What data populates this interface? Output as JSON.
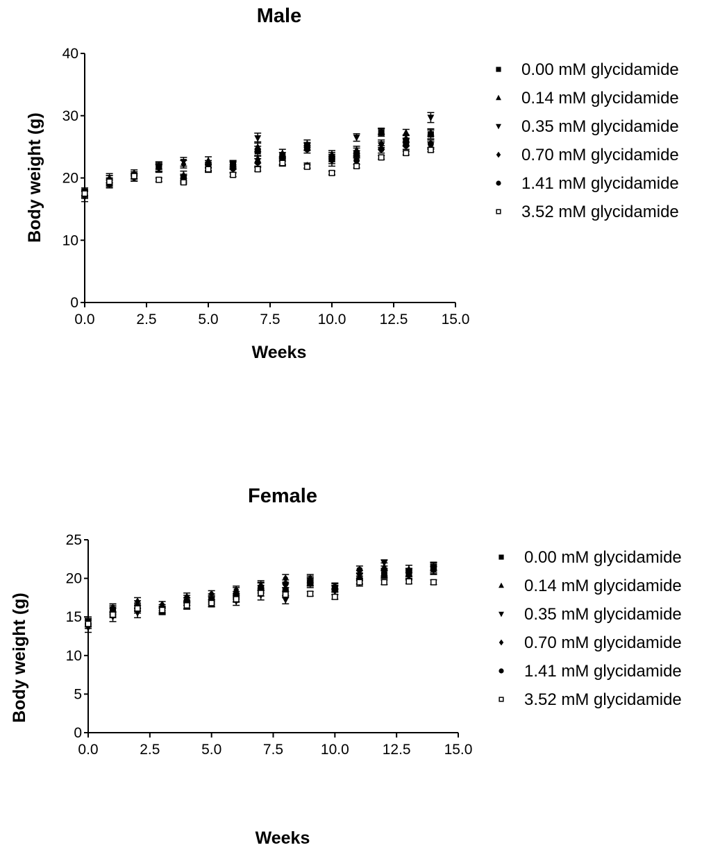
{
  "chart_data": [
    {
      "type": "scatter",
      "title": "Male",
      "xlabel": "Weeks",
      "ylabel": "Body weight (g)",
      "xlim": [
        0,
        15
      ],
      "ylim": [
        0,
        40
      ],
      "x_ticks": [
        "0.0",
        "2.5",
        "5.0",
        "7.5",
        "10.0",
        "12.5",
        "15.0"
      ],
      "y_ticks": [
        "0",
        "10",
        "20",
        "30",
        "40"
      ],
      "grid": false,
      "legend_position": "right",
      "x": [
        0,
        1,
        2,
        3,
        4,
        5,
        6,
        7,
        8,
        9,
        10,
        11,
        12,
        13,
        14
      ],
      "series": [
        {
          "name": "0.00 mM glycidamide",
          "marker": "square",
          "values": [
            17.8,
            19.6,
            20.4,
            21.8,
            20.0,
            21.8,
            22.3,
            24.3,
            23.5,
            25.0,
            23.2,
            23.8,
            27.3,
            25.7,
            27.0
          ],
          "errors": [
            0.6,
            0.8,
            0.6,
            0.7,
            0.6,
            0.6,
            0.5,
            0.8,
            0.6,
            0.6,
            0.6,
            0.6,
            0.6,
            0.6,
            0.7
          ]
        },
        {
          "name": "0.14 mM glycidamide",
          "marker": "triangle-up",
          "values": [
            17.5,
            20.0,
            20.8,
            22.0,
            20.5,
            22.8,
            22.2,
            25.0,
            24.0,
            25.5,
            23.8,
            24.5,
            27.5,
            27.3,
            27.3
          ],
          "errors": [
            0.6,
            0.7,
            0.5,
            0.6,
            0.6,
            0.6,
            0.6,
            0.8,
            0.6,
            0.6,
            0.6,
            0.6,
            0.5,
            0.5,
            0.6
          ]
        },
        {
          "name": "0.35 mM glycidamide",
          "marker": "triangle-down",
          "values": [
            17.0,
            19.3,
            20.1,
            21.5,
            22.6,
            22.2,
            22.0,
            26.4,
            22.8,
            25.1,
            22.7,
            26.5,
            25.2,
            25.8,
            29.7
          ],
          "errors": [
            0.8,
            0.7,
            0.6,
            0.6,
            0.7,
            0.6,
            0.6,
            0.8,
            0.6,
            0.6,
            0.8,
            0.6,
            0.6,
            0.6,
            0.8
          ]
        },
        {
          "name": "0.70 mM glycidamide",
          "marker": "diamond",
          "values": [
            17.6,
            19.8,
            20.0,
            21.6,
            22.2,
            21.6,
            22.0,
            23.0,
            22.5,
            22.0,
            23.5,
            24.2,
            25.5,
            26.3,
            25.2
          ],
          "errors": [
            0.5,
            0.6,
            0.5,
            0.6,
            0.6,
            0.6,
            0.6,
            0.6,
            0.6,
            0.4,
            0.6,
            0.6,
            0.6,
            0.6,
            0.6
          ]
        },
        {
          "name": "1.41 mM glycidamide",
          "marker": "circle",
          "values": [
            17.3,
            19.0,
            20.1,
            21.7,
            19.8,
            21.5,
            21.5,
            22.5,
            22.6,
            24.6,
            22.9,
            22.8,
            24.6,
            25.2,
            25.5
          ],
          "errors": [
            0.6,
            0.6,
            0.6,
            0.6,
            0.6,
            0.6,
            0.6,
            0.6,
            0.6,
            0.6,
            0.6,
            0.6,
            0.6,
            0.6,
            0.6
          ]
        },
        {
          "name": "3.52 mM glycidamide",
          "marker": "open-square",
          "values": [
            17.5,
            19.4,
            20.3,
            19.7,
            19.3,
            21.4,
            20.5,
            21.4,
            22.4,
            21.8,
            20.8,
            21.9,
            23.3,
            24.0,
            24.5
          ],
          "errors": [
            0.4,
            0.4,
            0.4,
            0.3,
            0.3,
            0.3,
            0.3,
            0.3,
            0.3,
            0.3,
            0.3,
            0.3,
            0.3,
            0.3,
            0.3
          ]
        }
      ]
    },
    {
      "type": "scatter",
      "title": "Female",
      "xlabel": "Weeks",
      "ylabel": "Body weight (g)",
      "xlim": [
        0,
        15
      ],
      "ylim": [
        0,
        25
      ],
      "x_ticks": [
        "0.0",
        "2.5",
        "5.0",
        "7.5",
        "10.0",
        "12.5",
        "15.0"
      ],
      "y_ticks": [
        "0",
        "5",
        "10",
        "15",
        "20",
        "25"
      ],
      "grid": false,
      "legend_position": "right",
      "x": [
        0,
        1,
        2,
        3,
        4,
        5,
        6,
        7,
        8,
        9,
        10,
        11,
        12,
        13,
        14
      ],
      "series": [
        {
          "name": "0.00 mM glycidamide",
          "marker": "square",
          "values": [
            14.3,
            15.8,
            16.3,
            16.0,
            17.0,
            17.3,
            17.8,
            18.6,
            18.3,
            19.5,
            18.6,
            19.8,
            20.5,
            20.7,
            21.5
          ],
          "errors": [
            0.5,
            0.5,
            0.5,
            0.4,
            0.5,
            0.5,
            0.5,
            0.5,
            0.5,
            0.5,
            0.4,
            0.5,
            0.5,
            0.5,
            0.5
          ]
        },
        {
          "name": "0.14 mM glycidamide",
          "marker": "triangle-up",
          "values": [
            14.5,
            16.0,
            16.6,
            16.2,
            17.3,
            17.5,
            18.3,
            19.2,
            18.8,
            19.8,
            18.9,
            20.2,
            21.5,
            21.2,
            21.6
          ],
          "errors": [
            0.5,
            0.5,
            0.5,
            0.4,
            0.5,
            0.5,
            0.5,
            0.5,
            0.5,
            0.5,
            0.4,
            0.5,
            0.5,
            0.5,
            0.5
          ]
        },
        {
          "name": "0.35 mM glycidamide",
          "marker": "triangle-down",
          "values": [
            13.6,
            15.0,
            15.5,
            15.7,
            16.5,
            16.8,
            17.0,
            17.8,
            17.2,
            19.3,
            18.3,
            19.5,
            22.0,
            20.8,
            21.0
          ],
          "errors": [
            0.6,
            0.6,
            0.6,
            0.4,
            0.5,
            0.5,
            0.5,
            0.6,
            0.5,
            0.5,
            0.4,
            0.5,
            0.4,
            0.5,
            0.5
          ]
        },
        {
          "name": "0.70 mM glycidamide",
          "marker": "diamond",
          "values": [
            14.0,
            16.2,
            17.0,
            16.6,
            17.6,
            18.0,
            18.5,
            19.0,
            20.0,
            20.0,
            19.0,
            20.5,
            20.8,
            20.3,
            21.3
          ],
          "errors": [
            0.5,
            0.5,
            0.5,
            0.4,
            0.5,
            0.4,
            0.5,
            0.5,
            0.5,
            0.5,
            0.4,
            0.5,
            0.5,
            0.5,
            0.5
          ]
        },
        {
          "name": "1.41 mM glycidamide",
          "marker": "circle",
          "values": [
            14.2,
            15.6,
            16.0,
            15.8,
            17.0,
            17.1,
            17.5,
            18.9,
            19.3,
            19.6,
            18.7,
            21.1,
            20.6,
            20.5,
            21.1
          ],
          "errors": [
            0.5,
            0.5,
            0.5,
            0.4,
            0.5,
            0.5,
            0.5,
            0.5,
            0.5,
            0.5,
            0.4,
            0.5,
            0.5,
            0.5,
            0.5
          ]
        },
        {
          "name": "3.52 mM glycidamide",
          "marker": "open-square",
          "values": [
            14.1,
            15.3,
            16.1,
            15.9,
            16.5,
            16.8,
            17.3,
            18.1,
            17.9,
            18.0,
            17.6,
            19.5,
            19.5,
            19.6,
            19.5
          ],
          "errors": [
            0.4,
            0.4,
            0.4,
            0.4,
            0.4,
            0.4,
            0.4,
            0.4,
            0.4,
            0.3,
            0.3,
            0.3,
            0.3,
            0.3,
            0.3
          ]
        }
      ]
    }
  ]
}
